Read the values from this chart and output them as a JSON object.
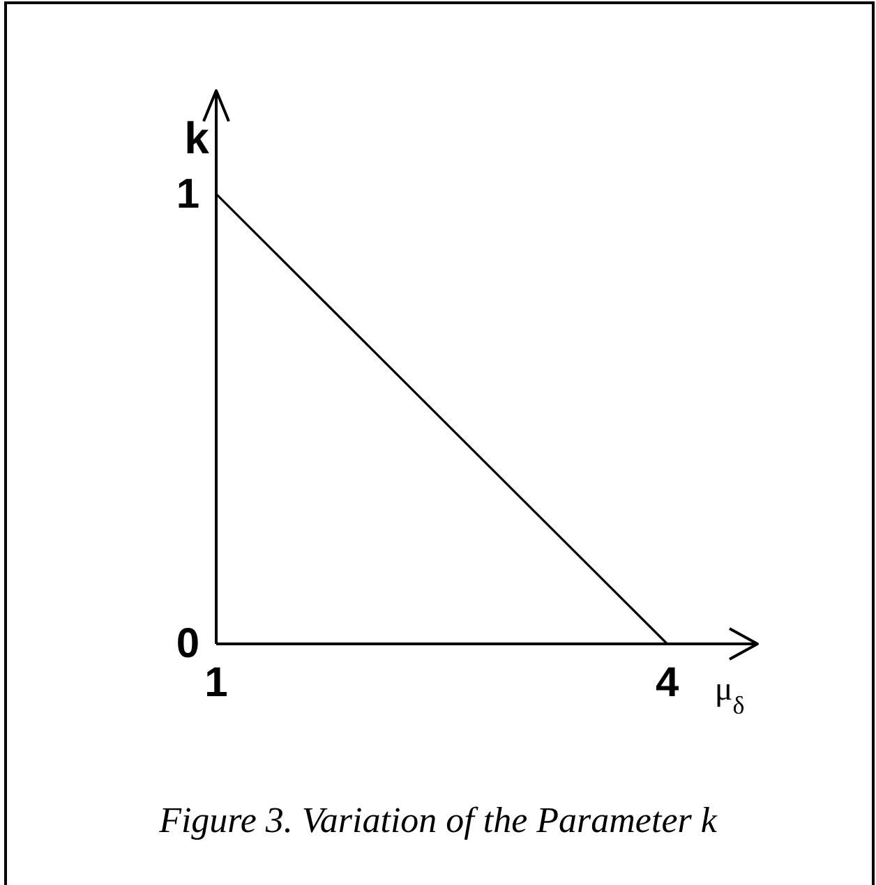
{
  "chart_data": {
    "type": "line",
    "title": "Figure 3. Variation of the Parameter k",
    "xlabel": "μ$_{δ}$",
    "ylabel": "k",
    "x": [
      1,
      4
    ],
    "series": [
      {
        "color": "#000000",
        "values": [
          1,
          0
        ]
      }
    ],
    "xlim": [
      1,
      4.6
    ],
    "ylim": [
      0,
      1.23
    ],
    "xticks": [
      1,
      4
    ],
    "yticks": [
      0,
      1
    ]
  }
}
